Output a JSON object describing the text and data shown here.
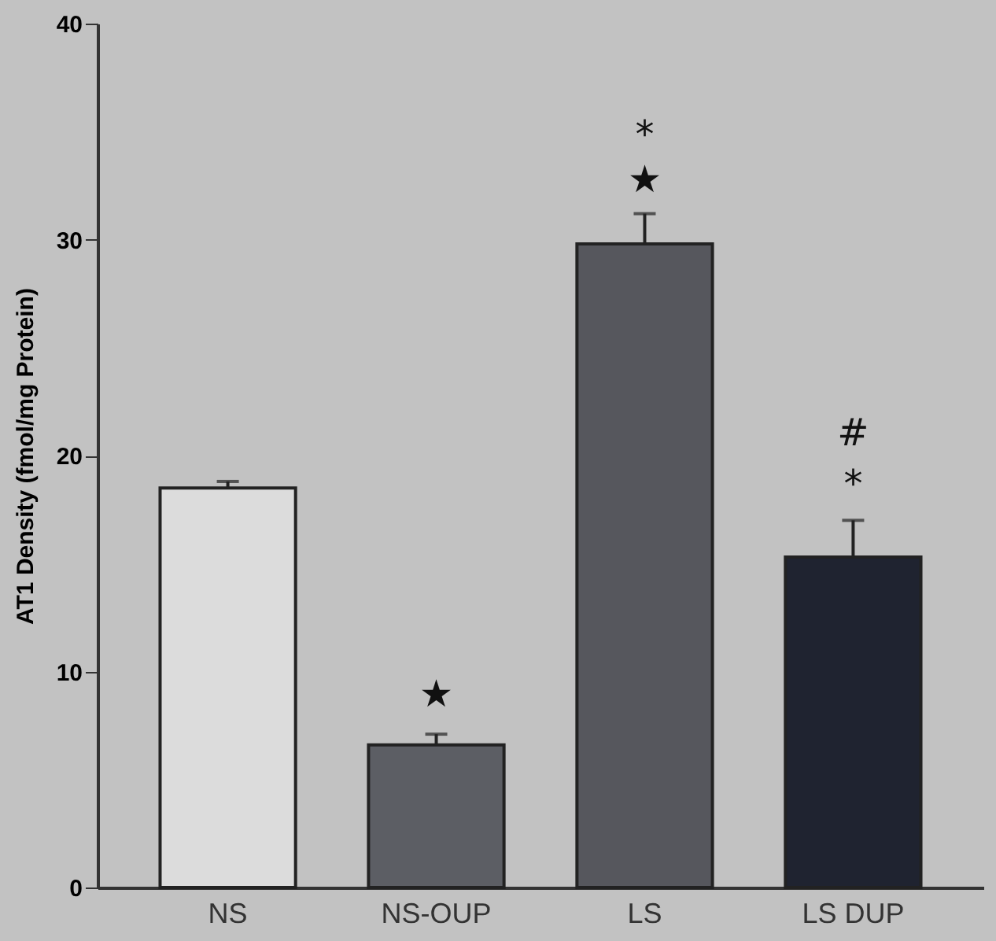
{
  "chart_data": {
    "type": "bar",
    "ylabel": "AT1 Density (fmol/mg Protein)",
    "categories": [
      "NS",
      "NS-OUP",
      "LS",
      "LS DUP"
    ],
    "values": [
      18.5,
      6.6,
      29.8,
      15.3
    ],
    "errors": [
      0.3,
      0.5,
      1.4,
      1.7
    ],
    "colors": [
      "#dcdcdc",
      "#5c5e64",
      "#56575d",
      "#1f2330"
    ],
    "ylim": [
      0,
      40
    ],
    "yticks": [
      0,
      10,
      20,
      30,
      40
    ],
    "grid": false,
    "annotations": [
      "★",
      "★",
      "*",
      "*",
      "#"
    ]
  }
}
